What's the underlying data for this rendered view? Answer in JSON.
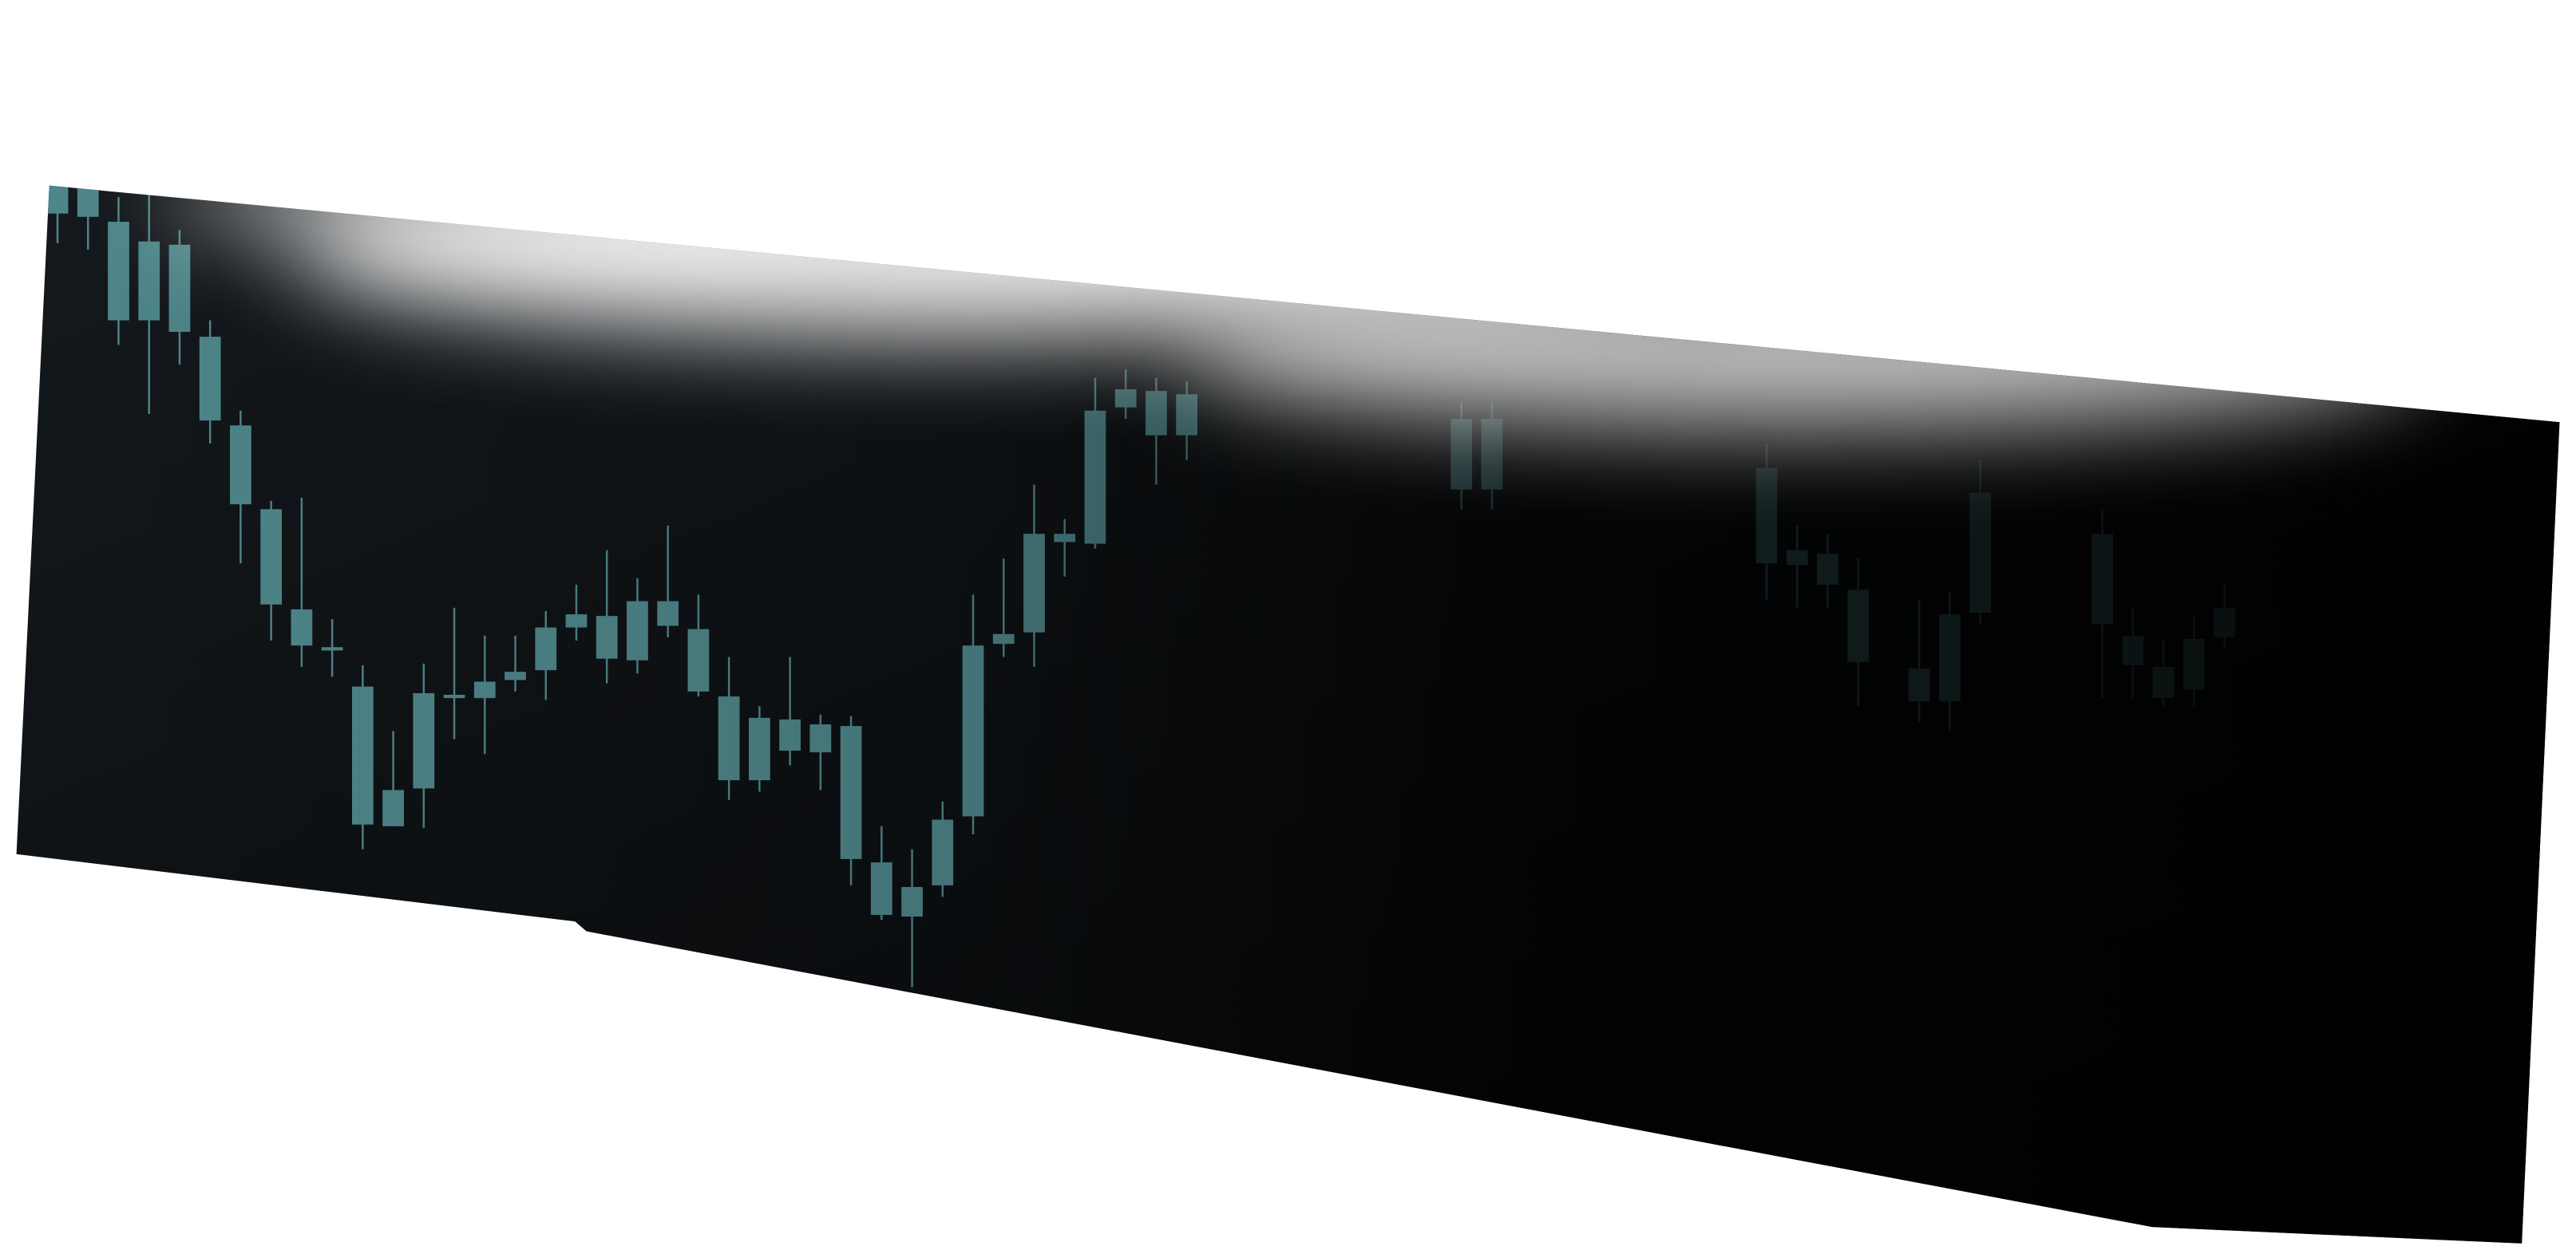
{
  "chart_data": {
    "type": "candlestick",
    "color": "#4f878b",
    "x": [
      0,
      1,
      2,
      3,
      4,
      5,
      6,
      7,
      8,
      9,
      10,
      11,
      12,
      13,
      14,
      15,
      16,
      17,
      18,
      19,
      20,
      21,
      22,
      23,
      24,
      25,
      26,
      27,
      28,
      29,
      30,
      31,
      32,
      33,
      34,
      35,
      36,
      37,
      46,
      47,
      56,
      57,
      58,
      59,
      61,
      62,
      63,
      67,
      68,
      69,
      70,
      71
    ],
    "open": [
      527,
      527,
      505,
      493,
      491,
      435,
      381,
      330,
      269,
      246,
      222,
      159,
      218,
      217,
      225,
      231,
      258,
      266,
      265,
      274,
      274,
      257,
      216,
      203,
      202,
      199,
      198,
      115,
      100,
      141,
      247,
      254,
      315,
      315,
      390,
      403,
      402,
      400,
      385,
      385,
      355,
      305,
      303,
      281,
      233,
      266,
      340,
      315,
      253,
      234,
      251,
      270
    ],
    "high": [
      527,
      527,
      520,
      522,
      500,
      445,
      390,
      335,
      337,
      263,
      235,
      195,
      236,
      270,
      253,
      253,
      268,
      284,
      305,
      288,
      320,
      278,
      240,
      210,
      240,
      205,
      204,
      137,
      123,
      152,
      278,
      300,
      345,
      324,
      410,
      415,
      410,
      408,
      395,
      395,
      370,
      320,
      315,
      300,
      275,
      280,
      360,
      330,
      270,
      250,
      265,
      285
    ],
    "low": [
      492,
      488,
      430,
      388,
      418,
      370,
      297,
      250,
      234,
      228,
      123,
      137,
      136,
      190,
      181,
      219,
      214,
      250,
      224,
      230,
      252,
      216,
      153,
      158,
      174,
      159,
      101,
      80,
      39,
      94,
      132,
      240,
      234,
      289,
      306,
      385,
      345,
      360,
      330,
      330,
      275,
      270,
      270,
      210,
      200,
      195,
      260,
      215,
      215,
      210,
      210,
      245
    ],
    "close": [
      510,
      508,
      445,
      445,
      438,
      384,
      333,
      272,
      247,
      244,
      138,
      137,
      160,
      215,
      215,
      226,
      232,
      258,
      239,
      238,
      259,
      219,
      165,
      165,
      183,
      182,
      117,
      83,
      82,
      101,
      143,
      248,
      255,
      310,
      309,
      392,
      375,
      375,
      342,
      342,
      297,
      296,
      284,
      237,
      213,
      213,
      267,
      260,
      235,
      215,
      220,
      252
    ],
    "xlim": [
      0,
      71
    ],
    "ylim": [
      0,
      540
    ]
  }
}
